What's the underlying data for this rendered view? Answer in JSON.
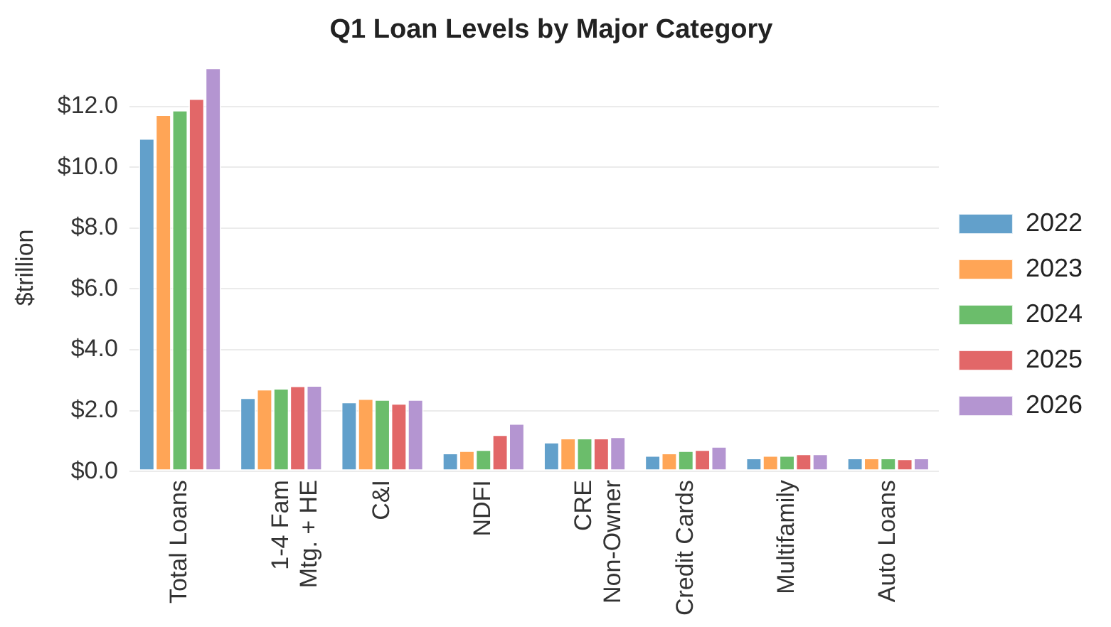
{
  "chart_data": {
    "type": "bar",
    "title": "Q1 Loan Levels by Major Category",
    "ylabel": "$trillion",
    "categories": [
      "Total Loans",
      "1-4 Fam\nMtg. + HE",
      "C&I",
      "NDFI",
      "CRE\nNon-Owner",
      "Credit Cards",
      "Multifamily",
      "Auto Loans"
    ],
    "series": [
      {
        "name": "2022",
        "color": "#62a0cb",
        "values": [
          10.95,
          2.43,
          2.29,
          0.61,
          0.97,
          0.53,
          0.45,
          0.45
        ]
      },
      {
        "name": "2023",
        "color": "#ffa556",
        "values": [
          11.73,
          2.71,
          2.4,
          0.69,
          1.1,
          0.61,
          0.53,
          0.45
        ]
      },
      {
        "name": "2024",
        "color": "#6bbd6b",
        "values": [
          11.88,
          2.74,
          2.37,
          0.72,
          1.1,
          0.69,
          0.53,
          0.45
        ]
      },
      {
        "name": "2025",
        "color": "#e26768",
        "values": [
          12.26,
          2.82,
          2.24,
          1.21,
          1.1,
          0.72,
          0.58,
          0.42
        ]
      },
      {
        "name": "2026",
        "color": "#b495d1",
        "values": [
          13.27,
          2.83,
          2.37,
          1.58,
          1.14,
          0.83,
          0.58,
          0.45
        ]
      }
    ],
    "ylim": [
      0,
      13.4
    ],
    "yticks": [
      {
        "value": 0,
        "label": "$0.0"
      },
      {
        "value": 2,
        "label": "$2.0"
      },
      {
        "value": 4,
        "label": "$4.0"
      },
      {
        "value": 6,
        "label": "$6.0"
      },
      {
        "value": 8,
        "label": "$8.0"
      },
      {
        "value": 10,
        "label": "$10.0"
      },
      {
        "value": 12,
        "label": "$12.0"
      }
    ],
    "grid": "y",
    "legend": "right"
  }
}
